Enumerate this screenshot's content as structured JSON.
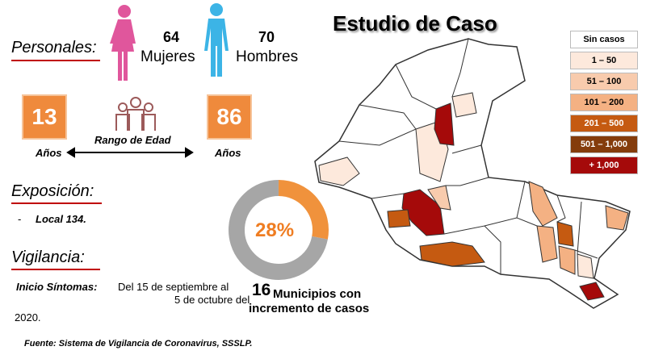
{
  "header": {
    "title": "Estudio de Caso"
  },
  "personales": {
    "label": "Personales:",
    "mujeres": {
      "count": 64,
      "label": "Mujeres"
    },
    "hombres": {
      "count": 70,
      "label": "Hombres"
    }
  },
  "edad": {
    "min": 13,
    "min_unit": "Años",
    "max": 86,
    "max_unit": "Años",
    "label": "Rango de Edad"
  },
  "exposicion": {
    "label": "Exposición:",
    "bullet": "-",
    "item": "Local  134."
  },
  "vigilancia": {
    "label": "Vigilancia:",
    "inicio_label": "Inicio Síntomas:",
    "lines": [
      "Del 15 de septiembre al",
      "5 de octubre del",
      "2020."
    ]
  },
  "donut": {
    "value": 28,
    "label": "28%",
    "color": "#f0923c",
    "rest_color": "#a6a6a6"
  },
  "municipios": {
    "count": 16,
    "lines": [
      "Municipios con",
      "incremento de casos"
    ]
  },
  "legend": {
    "items": [
      {
        "label": "Sin casos",
        "color": "#ffffff"
      },
      {
        "label": "1 – 50",
        "color": "#fde9dc"
      },
      {
        "label": "51 – 100",
        "color": "#f8cbad"
      },
      {
        "label": "101 – 200",
        "color": "#f4b183"
      },
      {
        "label": "201 – 500",
        "color": "#c55a11"
      },
      {
        "label": "501 – 1,000",
        "color": "#843c0c"
      },
      {
        "label": "+ 1,000",
        "color": "#a50a0a"
      }
    ]
  },
  "footer": {
    "source": "Fuente: Sistema de Vigilancia de Coronavirus, SSSLP."
  }
}
